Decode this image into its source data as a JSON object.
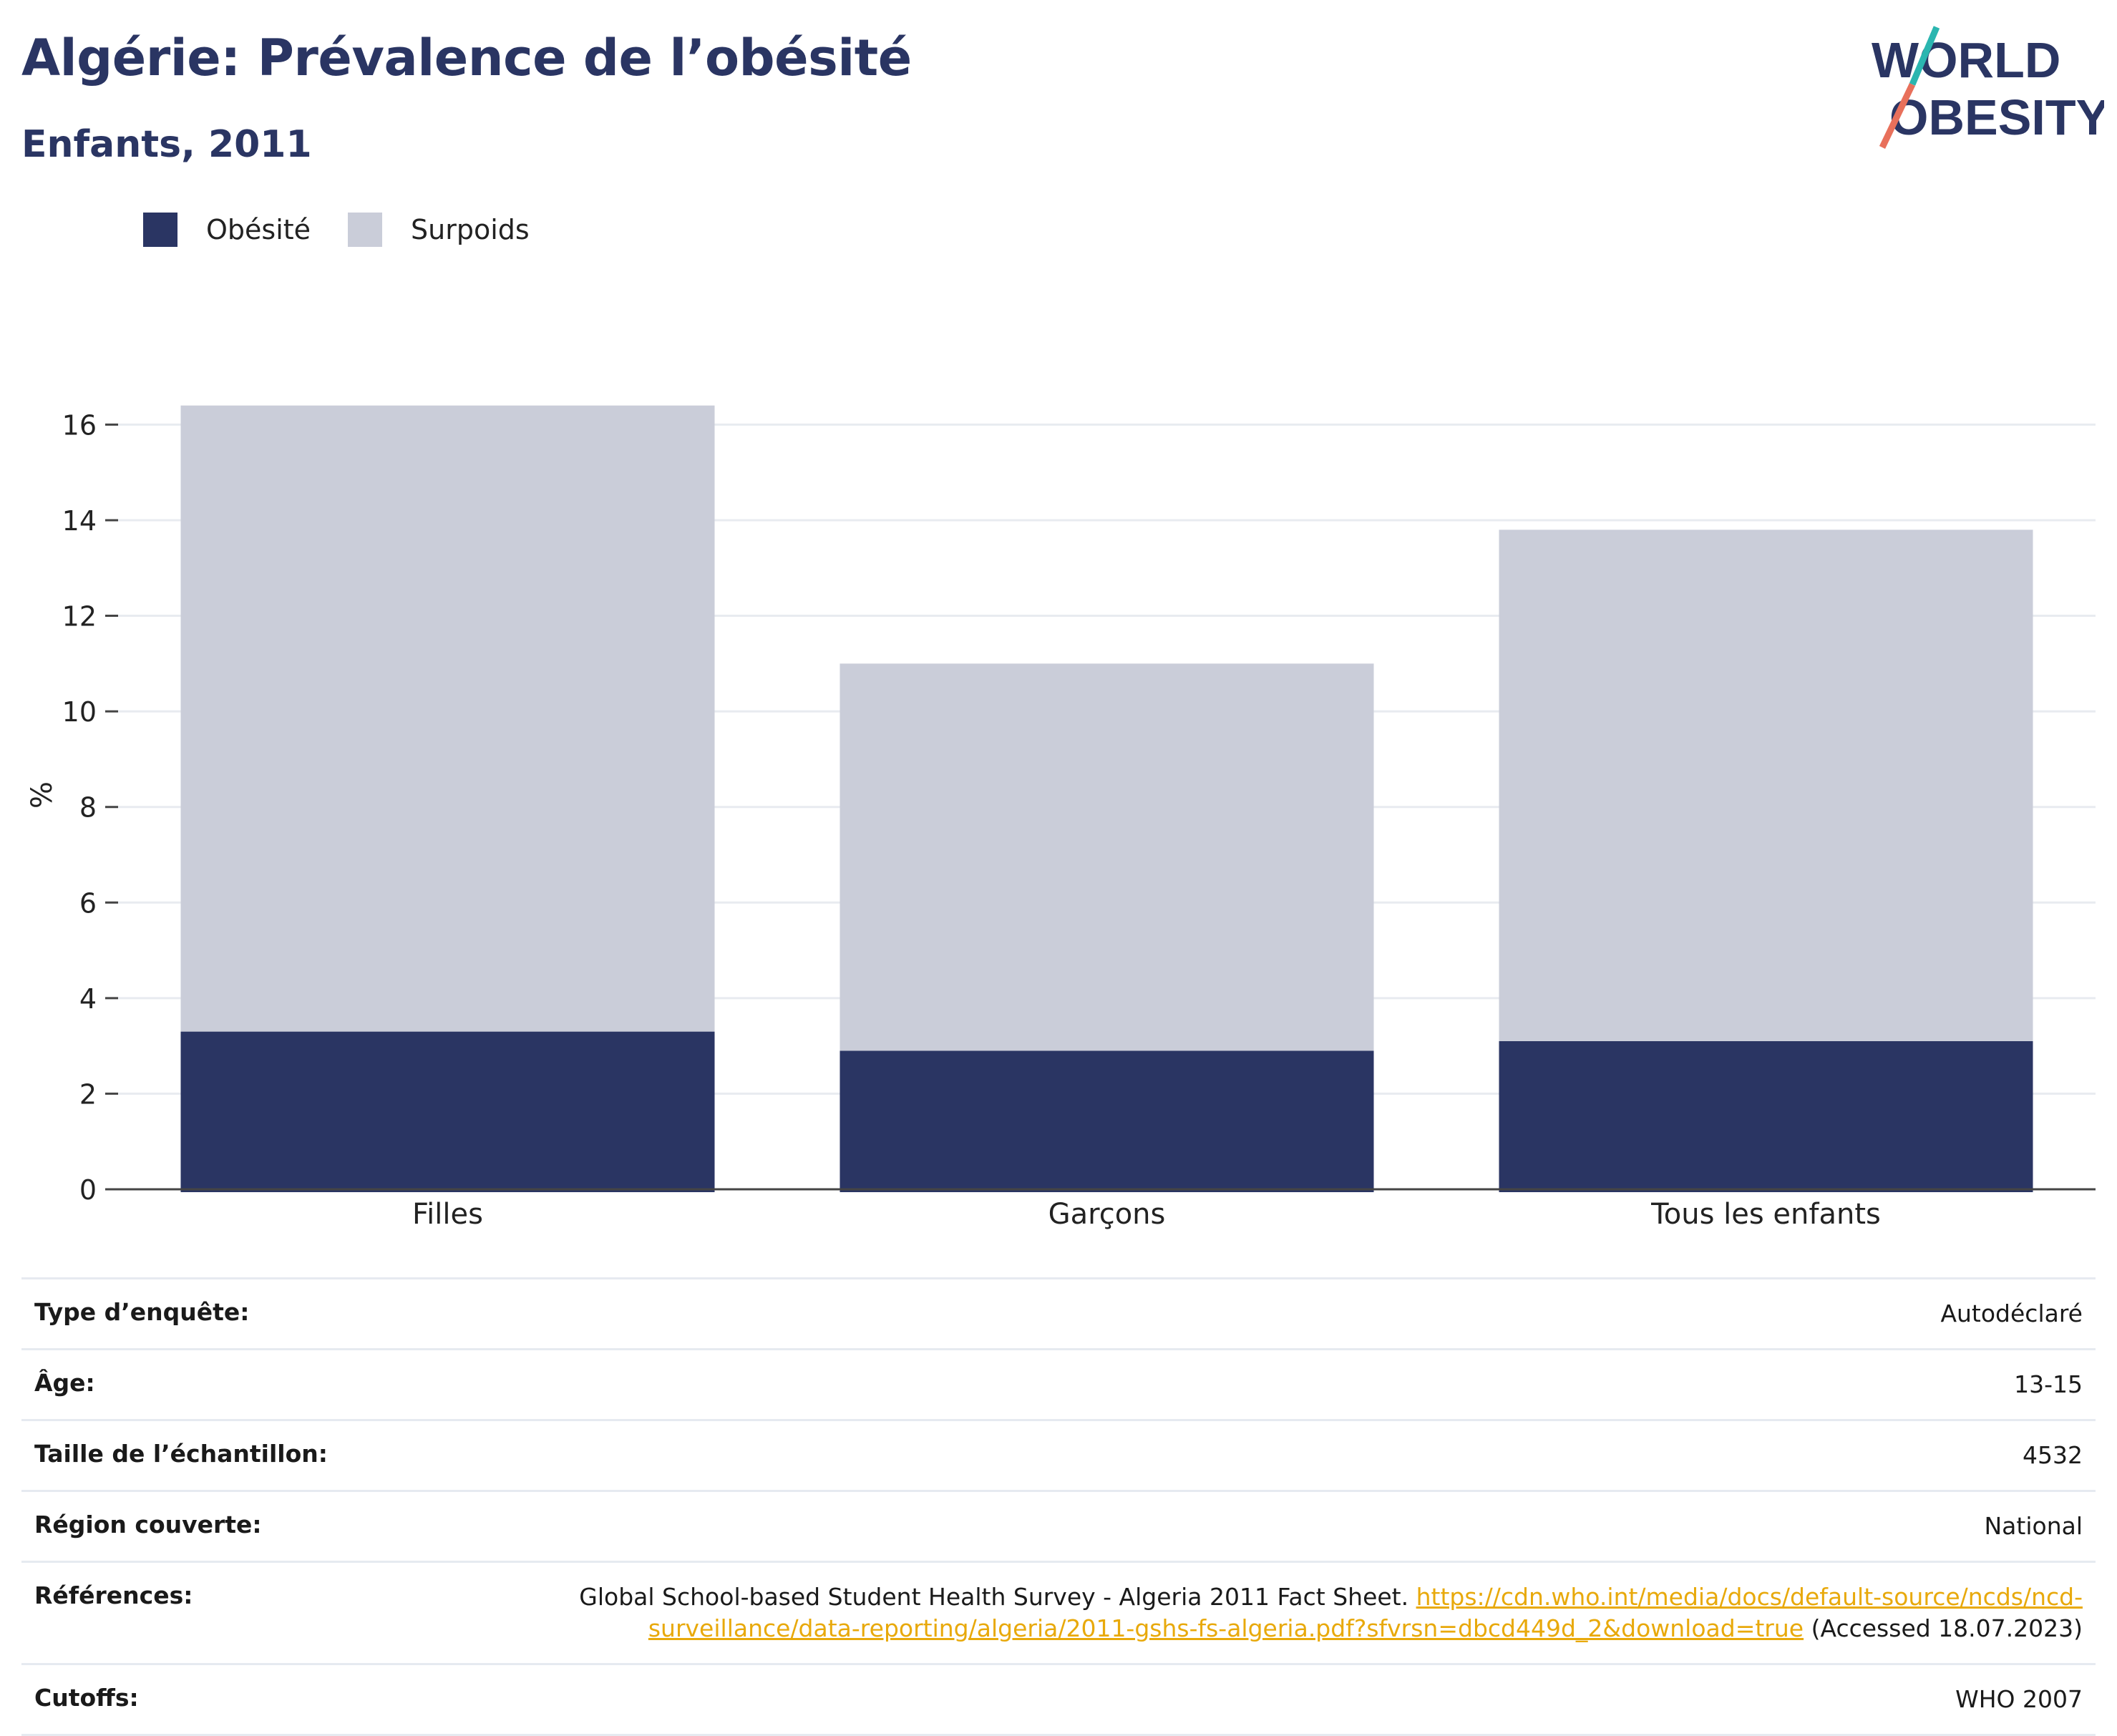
{
  "header": {
    "title": "Algérie: Prévalence de l’obésité",
    "subtitle": "Enfants, 2011"
  },
  "logo": {
    "line1": "WORLD",
    "line2": "OBESITY"
  },
  "colors": {
    "obesite": "#2a3563",
    "surpoids": "#cacdd9",
    "grid": "#e8ebf0",
    "axis": "#444444",
    "link": "#e8a90b"
  },
  "chart_data": {
    "type": "bar",
    "stacked": true,
    "categories": [
      "Filles",
      "Garçons",
      "Tous les enfants"
    ],
    "series": [
      {
        "name": "Obésité",
        "values": [
          3.3,
          2.9,
          3.1
        ]
      },
      {
        "name": "Surpoids",
        "values": [
          13.1,
          8.1,
          10.7
        ]
      }
    ],
    "ylabel": "%",
    "ylim": [
      0,
      16.5
    ],
    "yticks": [
      0,
      2,
      4,
      6,
      8,
      10,
      12,
      14,
      16
    ],
    "grid": true,
    "legend_position": "top-left"
  },
  "info": {
    "rows": [
      {
        "label": "Type d’enquête:",
        "value": "Autodéclaré"
      },
      {
        "label": "Âge:",
        "value": "13-15"
      },
      {
        "label": "Taille de l’échantillon:",
        "value": "4532"
      },
      {
        "label": "Région couverte:",
        "value": "National"
      }
    ],
    "references": {
      "label": "Références:",
      "text": "Global School-based Student Health Survey - Algeria 2011 Fact Sheet.",
      "link_part1": "https://cdn.who.int/media/docs/default-source/ncds/ncd-",
      "link_part2": "surveillance/data-reporting/algeria/2011-gshs-fs-algeria.pdf?sfvrsn=dbcd449d_2&download=true",
      "accessed": "(Accessed 18.07.2023)"
    },
    "cutoffs": {
      "label": "Cutoffs:",
      "value": "WHO 2007"
    }
  }
}
